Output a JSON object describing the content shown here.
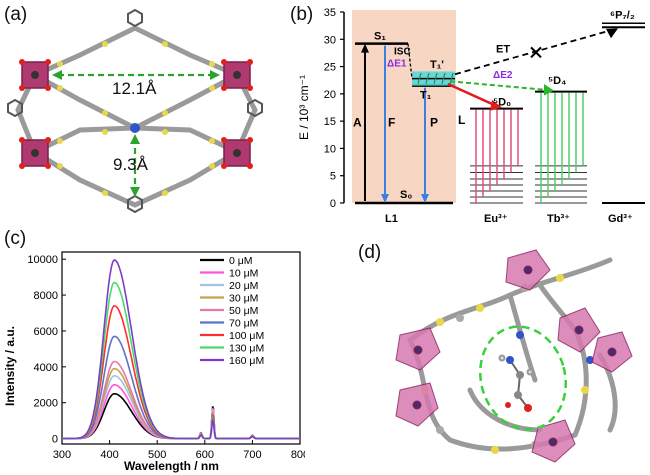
{
  "panels": {
    "a": {
      "label": "(a)",
      "dist_horizontal": "12.1Å",
      "dist_vertical": "9.3Å"
    },
    "b": {
      "label": "(b)",
      "ylabel": "E / 10³ cm⁻¹",
      "yticks": [
        "35",
        "30",
        "25",
        "20",
        "15",
        "10",
        "5",
        "0"
      ],
      "ymax": 35,
      "levels": {
        "S1": "S₁",
        "S0": "S₀",
        "T1": "T₁",
        "T1prime": "T₁'",
        "ISC": "ISC",
        "dE1": "ΔE1",
        "dE2": "ΔE2",
        "ET": "ET",
        "A": "A",
        "F": "F",
        "P": "P",
        "L": "L",
        "D0": "⁵D₀",
        "D4": "⁵D₄",
        "P72": "⁶P₇/₂"
      },
      "xlabels": [
        "L1",
        "Eu³⁺",
        "Tb³⁺",
        "Gd³⁺"
      ],
      "energies": {
        "S1": 29.2,
        "T1": 21.5,
        "T1prime": 22.8,
        "D0": 17.3,
        "D4": 20.4,
        "P72": 32.2
      }
    },
    "c": {
      "label": "(c)"
    },
    "d": {
      "label": "(d)"
    }
  },
  "chart_data": {
    "type": "line",
    "title": "",
    "xlabel": "Wavelength / nm",
    "ylabel": "Intensity / a.u.",
    "xlim": [
      300,
      800
    ],
    "ylim": [
      -300,
      10400
    ],
    "xticks": [
      300,
      400,
      500,
      600,
      700,
      800
    ],
    "yticks": [
      0,
      2000,
      4000,
      6000,
      8000,
      10000
    ],
    "peak_main_nm": 410,
    "peak_secondary_nm": 617,
    "series": [
      {
        "name": "0 μM",
        "color": "#000000",
        "peak": 2500,
        "eu_peak": 1850
      },
      {
        "name": "10 μM",
        "color": "#ff55dd",
        "peak": 3000,
        "eu_peak": 1750
      },
      {
        "name": "20 μM",
        "color": "#a2c3e8",
        "peak": 3500,
        "eu_peak": 1650
      },
      {
        "name": "30 μM",
        "color": "#c8a050",
        "peak": 3900,
        "eu_peak": 1550
      },
      {
        "name": "50 μM",
        "color": "#e47aa8",
        "peak": 4300,
        "eu_peak": 1450
      },
      {
        "name": "70 μM",
        "color": "#5a74c8",
        "peak": 5700,
        "eu_peak": 1350
      },
      {
        "name": "100 μM",
        "color": "#ff2d2d",
        "peak": 7400,
        "eu_peak": 1250
      },
      {
        "name": "130 μM",
        "color": "#4ed86a",
        "peak": 8700,
        "eu_peak": 1150
      },
      {
        "name": "160 μM",
        "color": "#7a3ec8",
        "peak": 9950,
        "eu_peak": 1050
      }
    ]
  }
}
